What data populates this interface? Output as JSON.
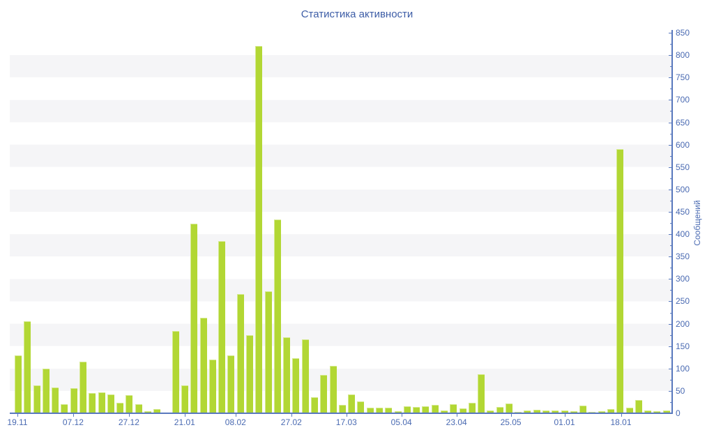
{
  "title": "Статистика активности",
  "y_axis": {
    "label": "Сообщений",
    "min": 0,
    "max": 850,
    "major_step": 50,
    "minor_step": 25
  },
  "x_axis": {
    "tick_labels": [
      {
        "text": "19.11",
        "pos_pct": 1.16
      },
      {
        "text": "07.12",
        "pos_pct": 9.58
      },
      {
        "text": "27.12",
        "pos_pct": 18.01
      },
      {
        "text": "21.01",
        "pos_pct": 26.43
      },
      {
        "text": "08.02",
        "pos_pct": 34.12
      },
      {
        "text": "27.02",
        "pos_pct": 42.55
      },
      {
        "text": "17.03",
        "pos_pct": 50.87
      },
      {
        "text": "05.04",
        "pos_pct": 59.19
      },
      {
        "text": "23.04",
        "pos_pct": 67.51
      },
      {
        "text": "25.05",
        "pos_pct": 75.72
      },
      {
        "text": "01.01",
        "pos_pct": 83.83
      },
      {
        "text": "18.01",
        "pos_pct": 92.36
      }
    ]
  },
  "chart_data": {
    "type": "bar",
    "title": "Статистика активности",
    "xlabel": "",
    "ylabel": "Сообщений",
    "ylim": [
      0,
      850
    ],
    "grid": "alternating horizontal bands every 50 units",
    "legend": "none",
    "x_tick_labels": [
      "19.11",
      "07.12",
      "27.12",
      "21.01",
      "08.02",
      "27.02",
      "17.03",
      "05.04",
      "23.04",
      "25.05",
      "01.01",
      "18.01"
    ],
    "values": [
      130,
      205,
      62,
      100,
      57,
      20,
      56,
      116,
      46,
      47,
      42,
      24,
      41,
      21,
      5,
      10,
      2,
      184,
      63,
      424,
      213,
      120,
      385,
      129,
      266,
      174,
      820,
      273,
      433,
      170,
      123,
      165,
      36,
      86,
      106,
      18,
      42,
      27,
      13,
      13,
      12,
      4,
      16,
      14,
      16,
      19,
      6,
      20,
      11,
      24,
      88,
      6,
      14,
      22,
      3,
      7,
      8,
      6,
      7,
      6,
      4,
      17,
      3,
      5,
      10,
      590,
      12,
      30,
      7,
      5,
      6
    ]
  },
  "colors": {
    "bar": "#b2d734",
    "bar_highlight": "rgba(255,255,255,0.45)",
    "axis_line": "#5878bd",
    "axis_text": "#4a6ab2",
    "title_text": "#3c5ca6",
    "stripe": "#f5f5f7",
    "background": "#ffffff"
  }
}
